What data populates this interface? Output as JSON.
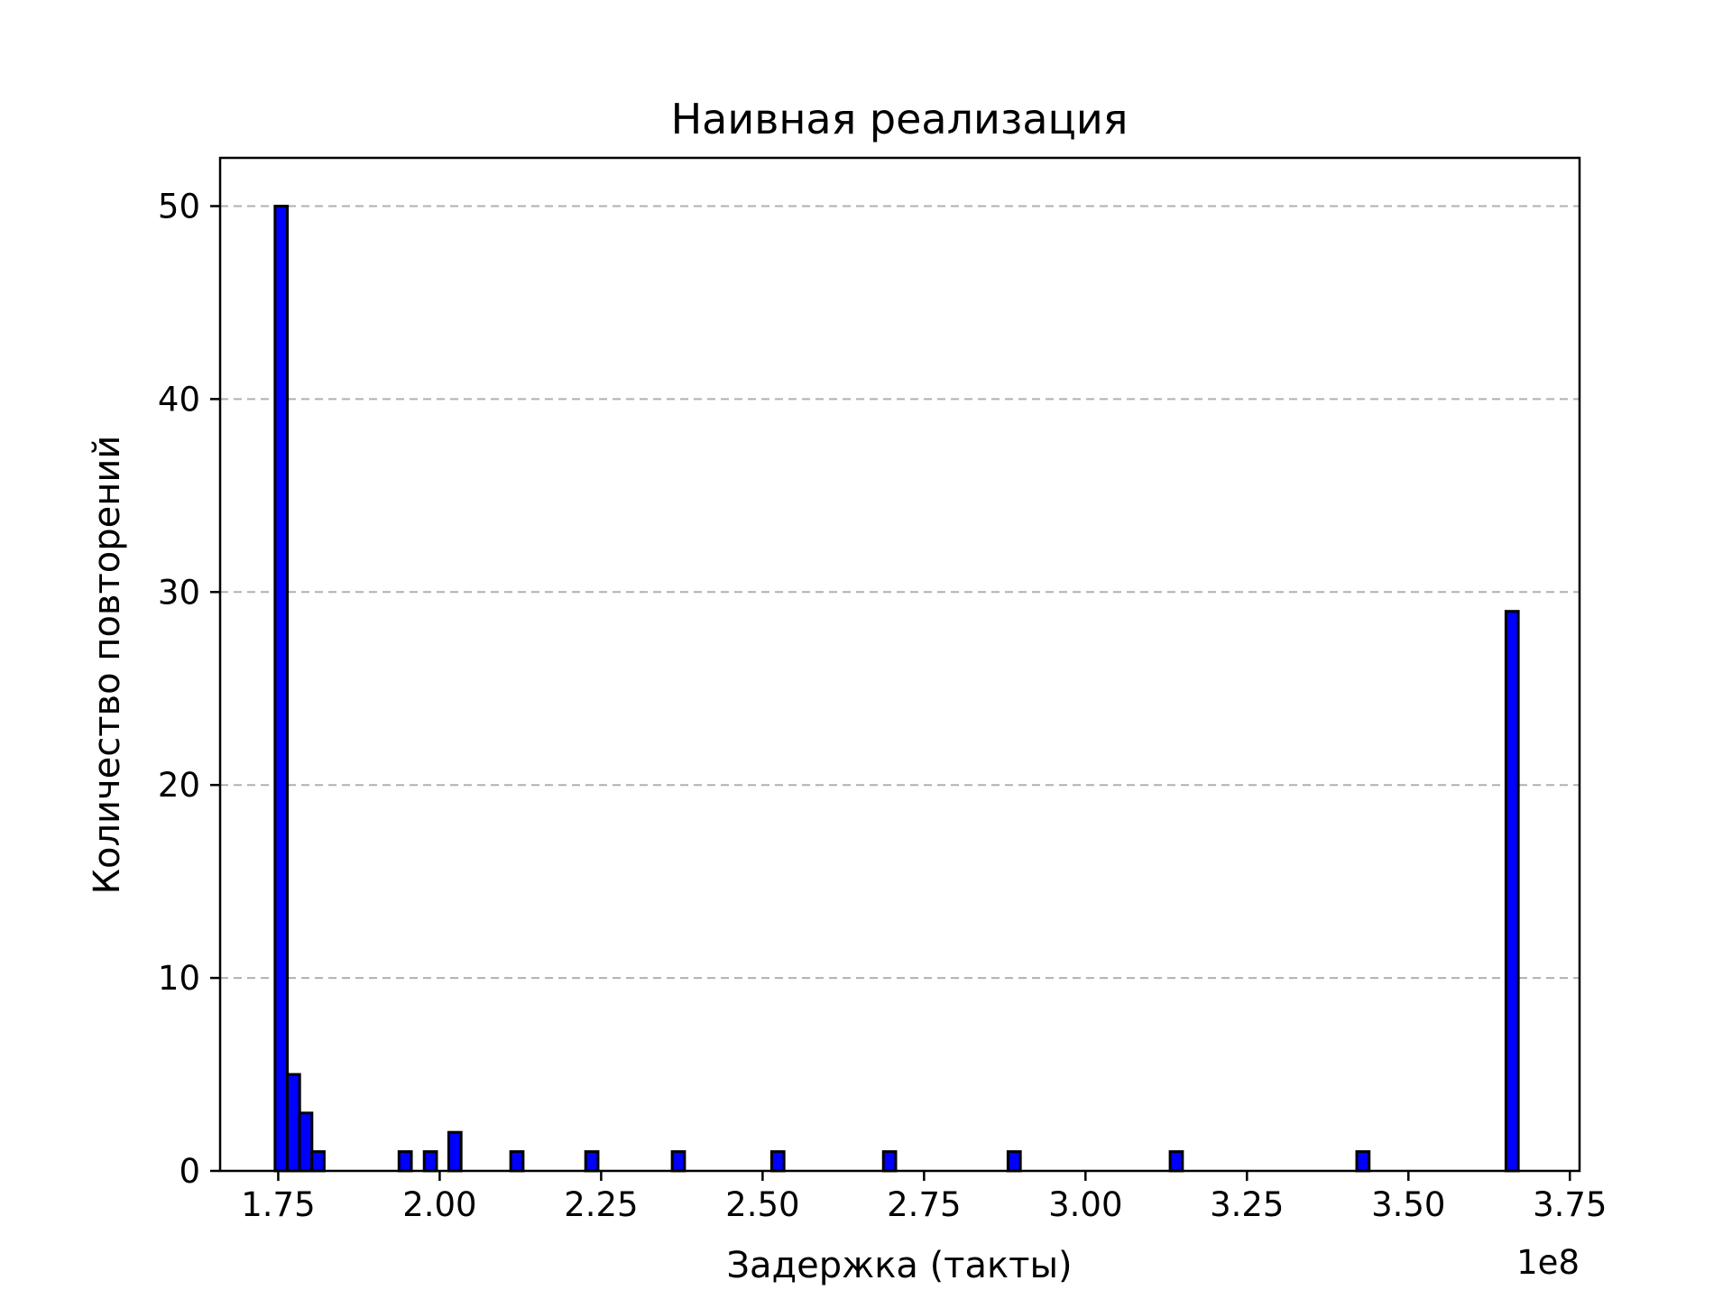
{
  "chart_data": {
    "type": "bar",
    "title": "Наивная реализация",
    "xlabel": "Задержка (такты)",
    "ylabel": "Количество повторений",
    "offset_label": "1e8",
    "xlim": [
      1.66,
      3.765
    ],
    "ylim": [
      0,
      52.5
    ],
    "xticks": [
      1.75,
      2.0,
      2.25,
      2.5,
      2.75,
      3.0,
      3.25,
      3.5,
      3.75
    ],
    "xtick_labels": [
      "1.75",
      "2.00",
      "2.25",
      "2.50",
      "2.75",
      "3.00",
      "3.25",
      "3.50",
      "3.75"
    ],
    "yticks": [
      0,
      10,
      20,
      30,
      40,
      50
    ],
    "ytick_labels": [
      "0",
      "10",
      "20",
      "30",
      "40",
      "50"
    ],
    "grid": "y-dashed",
    "bin_width": 0.0192,
    "series": [
      {
        "bars": [
          {
            "x": 1.745,
            "count": 50
          },
          {
            "x": 1.764,
            "count": 5
          },
          {
            "x": 1.783,
            "count": 3
          },
          {
            "x": 1.802,
            "count": 1
          },
          {
            "x": 1.937,
            "count": 1
          },
          {
            "x": 1.976,
            "count": 1
          },
          {
            "x": 2.014,
            "count": 2
          },
          {
            "x": 2.11,
            "count": 1
          },
          {
            "x": 2.226,
            "count": 1
          },
          {
            "x": 2.36,
            "count": 1
          },
          {
            "x": 2.514,
            "count": 1
          },
          {
            "x": 2.687,
            "count": 1
          },
          {
            "x": 2.88,
            "count": 1
          },
          {
            "x": 3.131,
            "count": 1
          },
          {
            "x": 3.42,
            "count": 1
          },
          {
            "x": 3.651,
            "count": 29
          }
        ]
      }
    ],
    "colors": {
      "bar_fill": "#0000ff",
      "bar_edge": "#000000",
      "grid": "#b0b0b0"
    }
  }
}
